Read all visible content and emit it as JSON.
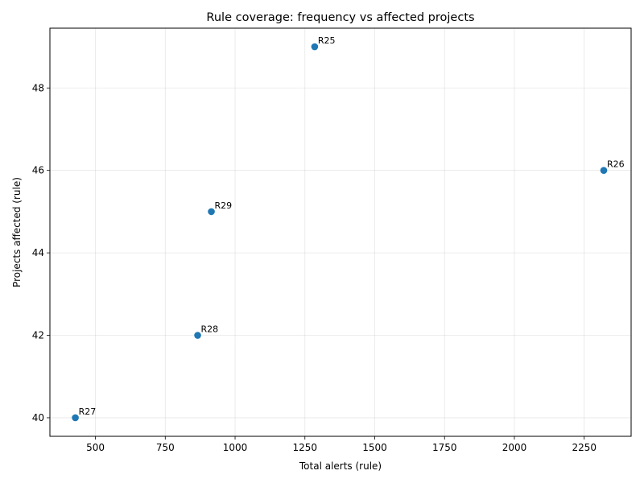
{
  "chart_data": {
    "type": "scatter",
    "title": "Rule coverage: frequency vs affected projects",
    "xlabel": "Total alerts (rule)",
    "ylabel": "Projects affected (rule)",
    "xlim": [
      337,
      2418
    ],
    "ylim": [
      39.55,
      49.45
    ],
    "x_ticks": [
      500,
      750,
      1000,
      1250,
      1500,
      1750,
      2000,
      2250
    ],
    "y_ticks": [
      40,
      42,
      44,
      46,
      48
    ],
    "grid": true,
    "point_color": "#1f77b4",
    "points": [
      {
        "label": "R25",
        "x": 1285,
        "y": 49
      },
      {
        "label": "R26",
        "x": 2320,
        "y": 46
      },
      {
        "label": "R29",
        "x": 915,
        "y": 45
      },
      {
        "label": "R28",
        "x": 866,
        "y": 42
      },
      {
        "label": "R27",
        "x": 428,
        "y": 40
      }
    ]
  }
}
